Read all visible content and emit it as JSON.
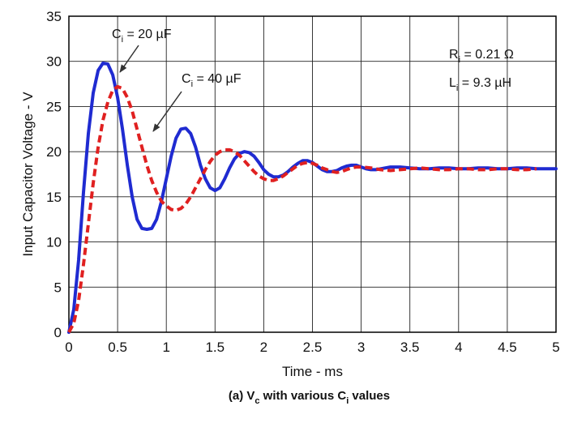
{
  "chart_data": {
    "type": "line",
    "xlabel": "Time - ms",
    "ylabel": "Input Capacitor Voltage - V",
    "xlim": [
      0,
      5
    ],
    "ylim": [
      0,
      35
    ],
    "x_ticks": [
      "0",
      "0.5",
      "1",
      "1.5",
      "2",
      "2.5",
      "3",
      "3.5",
      "4",
      "4.5",
      "5"
    ],
    "y_ticks": [
      "0",
      "5",
      "10",
      "15",
      "20",
      "25",
      "30",
      "35"
    ],
    "grid": true,
    "caption": {
      "prefix": "(a) V",
      "sub1": "c",
      "middle": " with various C",
      "sub2": "i",
      "suffix": " values"
    },
    "annotations": [
      {
        "base": "C",
        "sub": "i",
        "rest": " = 20 µF"
      },
      {
        "base": "C",
        "sub": "i",
        "rest": " = 40 µF"
      },
      {
        "base": "R",
        "sub": "i",
        "rest": " = 0.21 Ω"
      },
      {
        "base": "L",
        "sub": "i",
        "rest": " = 9.3 µH"
      }
    ],
    "series": [
      {
        "color": "#1f2bd1",
        "style": "solid",
        "x": [
          0,
          0.05,
          0.1,
          0.15,
          0.2,
          0.25,
          0.3,
          0.35,
          0.4,
          0.45,
          0.5,
          0.55,
          0.6,
          0.65,
          0.7,
          0.75,
          0.8,
          0.85,
          0.9,
          0.95,
          1.0,
          1.05,
          1.1,
          1.15,
          1.2,
          1.25,
          1.3,
          1.35,
          1.4,
          1.45,
          1.5,
          1.55,
          1.6,
          1.65,
          1.7,
          1.75,
          1.8,
          1.85,
          1.9,
          1.95,
          2.0,
          2.05,
          2.1,
          2.15,
          2.2,
          2.25,
          2.3,
          2.35,
          2.4,
          2.45,
          2.5,
          2.55,
          2.6,
          2.65,
          2.7,
          2.75,
          2.8,
          2.85,
          2.9,
          2.95,
          3.0,
          3.05,
          3.1,
          3.15,
          3.2,
          3.3,
          3.4,
          3.5,
          3.6,
          3.7,
          3.8,
          3.9,
          4.0,
          4.1,
          4.2,
          4.3,
          4.4,
          4.5,
          4.6,
          4.7,
          4.8,
          4.9,
          5.0
        ],
        "values": [
          0.0,
          2.5,
          8.0,
          15.5,
          22.0,
          26.5,
          29.0,
          29.8,
          29.7,
          28.5,
          26.0,
          22.5,
          18.5,
          15.0,
          12.5,
          11.5,
          11.4,
          11.5,
          12.5,
          14.5,
          17.0,
          19.5,
          21.5,
          22.5,
          22.6,
          22.0,
          20.5,
          18.5,
          17.0,
          16.0,
          15.7,
          16.0,
          17.0,
          18.2,
          19.2,
          19.8,
          20.0,
          19.9,
          19.5,
          18.8,
          18.0,
          17.5,
          17.2,
          17.2,
          17.4,
          17.8,
          18.3,
          18.7,
          19.0,
          19.0,
          18.8,
          18.4,
          18.0,
          17.8,
          17.8,
          17.9,
          18.2,
          18.4,
          18.5,
          18.5,
          18.3,
          18.1,
          18.0,
          18.0,
          18.1,
          18.3,
          18.3,
          18.2,
          18.1,
          18.1,
          18.2,
          18.2,
          18.1,
          18.1,
          18.2,
          18.2,
          18.1,
          18.1,
          18.2,
          18.2,
          18.1,
          18.1,
          18.1
        ]
      },
      {
        "color": "#e02020",
        "style": "dashed",
        "x": [
          0,
          0.05,
          0.1,
          0.15,
          0.2,
          0.25,
          0.3,
          0.35,
          0.4,
          0.45,
          0.5,
          0.55,
          0.6,
          0.65,
          0.7,
          0.75,
          0.8,
          0.85,
          0.9,
          0.95,
          1.0,
          1.05,
          1.1,
          1.15,
          1.2,
          1.25,
          1.3,
          1.35,
          1.4,
          1.45,
          1.5,
          1.55,
          1.6,
          1.65,
          1.7,
          1.75,
          1.8,
          1.85,
          1.9,
          1.95,
          2.0,
          2.05,
          2.1,
          2.15,
          2.2,
          2.25,
          2.3,
          2.35,
          2.4,
          2.45,
          2.5,
          2.55,
          2.6,
          2.65,
          2.7,
          2.75,
          2.8,
          2.85,
          2.9,
          2.95,
          3.0,
          3.1,
          3.2,
          3.3,
          3.4,
          3.5,
          3.6,
          3.7,
          3.8,
          3.9,
          4.0,
          4.1,
          4.2,
          4.3,
          4.4,
          4.5,
          4.6,
          4.7,
          4.8
        ],
        "values": [
          0.0,
          1.0,
          3.5,
          7.5,
          12.0,
          16.5,
          20.5,
          23.5,
          25.5,
          26.8,
          27.2,
          27.0,
          26.0,
          24.5,
          22.5,
          20.5,
          18.5,
          16.8,
          15.5,
          14.5,
          14.0,
          13.6,
          13.5,
          13.7,
          14.2,
          15.0,
          16.0,
          17.0,
          18.0,
          18.9,
          19.6,
          20.0,
          20.2,
          20.2,
          20.0,
          19.6,
          19.0,
          18.4,
          17.8,
          17.3,
          17.0,
          16.8,
          16.8,
          17.0,
          17.3,
          17.7,
          18.1,
          18.5,
          18.7,
          18.8,
          18.7,
          18.5,
          18.2,
          18.0,
          17.8,
          17.7,
          17.8,
          18.0,
          18.2,
          18.3,
          18.3,
          18.2,
          18.0,
          17.9,
          18.0,
          18.1,
          18.2,
          18.1,
          18.0,
          18.0,
          18.1,
          18.1,
          18.0,
          18.0,
          18.1,
          18.1,
          18.0,
          18.0,
          18.1
        ]
      }
    ]
  }
}
